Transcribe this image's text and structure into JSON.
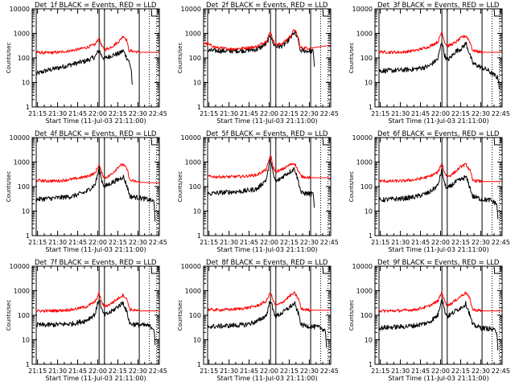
{
  "figure": {
    "background": "#ffffff",
    "axis_color": "#000000",
    "events_color": "#000000",
    "lld_color": "#ff0000"
  },
  "chart_data": [
    {
      "type": "line",
      "title": "Det_1f BLACK = Events, RED = LLD",
      "xlabel": "Start Time (11-Jul-03 21:11:00)",
      "ylabel": "Counts/sec",
      "x_tick_labels": [
        "21:15",
        "21:30",
        "21:45",
        "22:00",
        "22:15",
        "22:30",
        "22:45"
      ],
      "y_tick_labels": [
        "1",
        "10",
        "100",
        "1000",
        "10000"
      ],
      "xlim_min": [
        0,
        95
      ],
      "ylim": [
        1,
        10000
      ],
      "yscale": "log",
      "solid_markers_min": [
        3,
        50,
        54,
        80
      ],
      "dotted_markers_min": [
        87.5,
        93
      ],
      "series": [
        {
          "name": "Events",
          "color": "#000000",
          "x": [
            3,
            10,
            20,
            30,
            40,
            47,
            50,
            52,
            54,
            57,
            60,
            65,
            68,
            71,
            72,
            74,
            75
          ],
          "y": [
            22,
            30,
            40,
            55,
            75,
            110,
            210,
            120,
            95,
            110,
            130,
            150,
            200,
            95,
            80,
            35,
            5
          ]
        },
        {
          "name": "LLD",
          "color": "#ff0000",
          "x": [
            3,
            10,
            20,
            30,
            40,
            47,
            50,
            52,
            54,
            57,
            60,
            65,
            68,
            71,
            72,
            80,
            95
          ],
          "y": [
            170,
            160,
            170,
            200,
            260,
            350,
            650,
            300,
            220,
            240,
            300,
            480,
            800,
            500,
            200,
            170,
            170
          ]
        }
      ]
    },
    {
      "type": "line",
      "title": "Det_2f BLACK = Events, RED = LLD",
      "xlabel": "Start Time (11-Jul-03 21:11:00)",
      "ylabel": "Counts/sec",
      "x_tick_labels": [
        "21:15",
        "21:30",
        "21:45",
        "22:00",
        "22:15",
        "22:30",
        "22:45"
      ],
      "y_tick_labels": [
        "1",
        "10",
        "100",
        "1000",
        "10000"
      ],
      "xlim_min": [
        0,
        95
      ],
      "ylim": [
        1,
        10000
      ],
      "yscale": "log",
      "solid_markers_min": [
        3,
        50,
        54,
        80
      ],
      "dotted_markers_min": [
        87.5,
        93
      ],
      "series": [
        {
          "name": "Events",
          "color": "#000000",
          "x": [
            3,
            10,
            20,
            30,
            40,
            47,
            50,
            52,
            54,
            57,
            60,
            65,
            68,
            71,
            72,
            80,
            82,
            83
          ],
          "y": [
            200,
            195,
            190,
            200,
            220,
            380,
            900,
            380,
            300,
            290,
            330,
            650,
            1100,
            500,
            200,
            190,
            185,
            30
          ]
        },
        {
          "name": "LLD",
          "color": "#ff0000",
          "x": [
            0,
            10,
            20,
            30,
            40,
            47,
            50,
            52,
            54,
            57,
            60,
            65,
            68,
            71,
            72,
            80,
            95
          ],
          "y": [
            420,
            260,
            230,
            250,
            290,
            500,
            1200,
            500,
            360,
            360,
            420,
            800,
            1500,
            600,
            260,
            250,
            330
          ]
        }
      ]
    },
    {
      "type": "line",
      "title": "Det_3f BLACK = Events, RED = LLD",
      "xlabel": "Start Time (11-Jul-03 21:11:00)",
      "ylabel": "Counts/sec",
      "x_tick_labels": [
        "21:15",
        "21:30",
        "21:45",
        "22:00",
        "22:15",
        "22:30",
        "22:45"
      ],
      "y_tick_labels": [
        "1",
        "10",
        "100",
        "1000",
        "10000"
      ],
      "xlim_min": [
        0,
        95
      ],
      "ylim": [
        1,
        10000
      ],
      "yscale": "log",
      "solid_markers_min": [
        3,
        50,
        54,
        80
      ],
      "dotted_markers_min": [
        87.5,
        93
      ],
      "series": [
        {
          "name": "Events",
          "color": "#000000",
          "x": [
            3,
            10,
            20,
            30,
            40,
            47,
            50,
            52,
            54,
            57,
            60,
            65,
            68,
            71,
            73,
            80,
            84,
            89,
            92,
            93
          ],
          "y": [
            30,
            30,
            32,
            35,
            45,
            90,
            500,
            130,
            80,
            110,
            180,
            250,
            400,
            130,
            60,
            40,
            32,
            20,
            15,
            5
          ]
        },
        {
          "name": "LLD",
          "color": "#ff0000",
          "x": [
            3,
            10,
            20,
            30,
            40,
            47,
            50,
            52,
            54,
            57,
            60,
            65,
            68,
            71,
            73,
            80,
            95
          ],
          "y": [
            180,
            170,
            170,
            200,
            280,
            450,
            1200,
            450,
            300,
            350,
            420,
            700,
            800,
            450,
            200,
            170,
            170
          ]
        }
      ]
    },
    {
      "type": "line",
      "title": "Det_4f BLACK = Events, RED = LLD",
      "xlabel": "Start Time (11-Jul-03 21:11:00)",
      "ylabel": "Counts/sec",
      "x_tick_labels": [
        "21:15",
        "21:30",
        "21:45",
        "22:00",
        "22:15",
        "22:30",
        "22:45"
      ],
      "y_tick_labels": [
        "1",
        "10",
        "100",
        "1000",
        "10000"
      ],
      "xlim_min": [
        0,
        95
      ],
      "ylim": [
        1,
        10000
      ],
      "yscale": "log",
      "solid_markers_min": [
        3,
        50,
        54,
        80
      ],
      "dotted_markers_min": [
        87.5,
        93
      ],
      "series": [
        {
          "name": "Events",
          "color": "#000000",
          "x": [
            3,
            10,
            20,
            30,
            40,
            47,
            50,
            52,
            54,
            57,
            60,
            65,
            68,
            71,
            73,
            80,
            86,
            91,
            92
          ],
          "y": [
            30,
            32,
            35,
            40,
            60,
            120,
            550,
            180,
            100,
            120,
            150,
            200,
            260,
            100,
            40,
            35,
            30,
            25,
            3
          ]
        },
        {
          "name": "LLD",
          "color": "#ff0000",
          "x": [
            3,
            10,
            20,
            30,
            40,
            47,
            50,
            52,
            54,
            57,
            60,
            65,
            68,
            71,
            73,
            80,
            95
          ],
          "y": [
            180,
            170,
            170,
            200,
            250,
            350,
            800,
            350,
            230,
            260,
            350,
            700,
            800,
            500,
            180,
            150,
            140
          ]
        }
      ]
    },
    {
      "type": "line",
      "title": "Det_5f BLACK = Events, RED = LLD",
      "xlabel": "Start Time (11-Jul-03 21:11:00)",
      "ylabel": "Counts/sec",
      "x_tick_labels": [
        "21:15",
        "21:30",
        "21:45",
        "22:00",
        "22:15",
        "22:30",
        "22:45"
      ],
      "y_tick_labels": [
        "1",
        "10",
        "100",
        "1000",
        "10000"
      ],
      "xlim_min": [
        0,
        95
      ],
      "ylim": [
        1,
        10000
      ],
      "yscale": "log",
      "solid_markers_min": [
        3,
        50,
        54,
        80
      ],
      "dotted_markers_min": [
        87.5,
        93
      ],
      "series": [
        {
          "name": "Events",
          "color": "#000000",
          "x": [
            3,
            10,
            20,
            30,
            40,
            47,
            50,
            52,
            54,
            57,
            60,
            65,
            68,
            71,
            73,
            80,
            82,
            83
          ],
          "y": [
            50,
            55,
            60,
            65,
            80,
            200,
            1400,
            300,
            160,
            200,
            280,
            420,
            550,
            150,
            55,
            50,
            48,
            10
          ]
        },
        {
          "name": "LLD",
          "color": "#ff0000",
          "x": [
            3,
            10,
            20,
            30,
            40,
            47,
            50,
            52,
            54,
            57,
            60,
            65,
            68,
            71,
            73,
            80,
            95
          ],
          "y": [
            260,
            250,
            250,
            260,
            300,
            500,
            2000,
            600,
            400,
            450,
            550,
            800,
            900,
            400,
            260,
            230,
            230
          ]
        }
      ]
    },
    {
      "type": "line",
      "title": "Det_6f BLACK = Events, RED = LLD",
      "xlabel": "Start Time (11-Jul-03 21:11:00)",
      "ylabel": "Counts/sec",
      "x_tick_labels": [
        "21:15",
        "21:30",
        "21:45",
        "22:00",
        "22:15",
        "22:30",
        "22:45"
      ],
      "y_tick_labels": [
        "1",
        "10",
        "100",
        "1000",
        "10000"
      ],
      "xlim_min": [
        0,
        95
      ],
      "ylim": [
        1,
        10000
      ],
      "yscale": "log",
      "solid_markers_min": [
        3,
        50,
        54,
        80
      ],
      "dotted_markers_min": [
        87.5,
        93
      ],
      "series": [
        {
          "name": "Events",
          "color": "#000000",
          "x": [
            3,
            10,
            20,
            30,
            40,
            47,
            50,
            52,
            54,
            57,
            60,
            65,
            68,
            71,
            73,
            80,
            86,
            91,
            92
          ],
          "y": [
            28,
            30,
            32,
            38,
            55,
            110,
            500,
            130,
            80,
            110,
            150,
            200,
            250,
            90,
            40,
            30,
            28,
            20,
            4
          ]
        },
        {
          "name": "LLD",
          "color": "#ff0000",
          "x": [
            3,
            10,
            20,
            30,
            40,
            47,
            50,
            52,
            54,
            57,
            60,
            65,
            68,
            71,
            73,
            80,
            95
          ],
          "y": [
            170,
            165,
            170,
            190,
            250,
            380,
            900,
            380,
            250,
            300,
            400,
            700,
            800,
            450,
            180,
            160,
            160
          ]
        }
      ]
    },
    {
      "type": "line",
      "title": "Det_7f BLACK = Events, RED = LLD",
      "xlabel": "Start Time (11-Jul-03 21:11:00)",
      "ylabel": "Counts/sec",
      "x_tick_labels": [
        "21:15",
        "21:30",
        "21:45",
        "22:00",
        "22:15",
        "22:30",
        "22:45"
      ],
      "y_tick_labels": [
        "1",
        "10",
        "100",
        "1000",
        "10000"
      ],
      "xlim_min": [
        0,
        95
      ],
      "ylim": [
        1,
        10000
      ],
      "yscale": "log",
      "solid_markers_min": [
        3,
        50,
        54,
        80
      ],
      "dotted_markers_min": [
        87.5,
        93
      ],
      "series": [
        {
          "name": "Events",
          "color": "#000000",
          "x": [
            3,
            10,
            20,
            30,
            40,
            47,
            50,
            52,
            54,
            57,
            60,
            65,
            68,
            71,
            73,
            80,
            86,
            91,
            92
          ],
          "y": [
            40,
            40,
            42,
            45,
            60,
            110,
            500,
            160,
            100,
            120,
            150,
            250,
            330,
            120,
            45,
            40,
            38,
            30,
            5
          ]
        },
        {
          "name": "LLD",
          "color": "#ff0000",
          "x": [
            3,
            10,
            20,
            30,
            40,
            47,
            50,
            52,
            54,
            57,
            60,
            65,
            68,
            71,
            73,
            80,
            95
          ],
          "y": [
            150,
            150,
            155,
            170,
            220,
            350,
            800,
            330,
            230,
            260,
            330,
            520,
            680,
            420,
            170,
            150,
            150
          ]
        }
      ]
    },
    {
      "type": "line",
      "title": "Det_8f BLACK = Events, RED = LLD",
      "xlabel": "Start Time (11-Jul-03 21:11:00)",
      "ylabel": "Counts/sec",
      "x_tick_labels": [
        "21:15",
        "21:30",
        "21:45",
        "22:00",
        "22:15",
        "22:30",
        "22:45"
      ],
      "y_tick_labels": [
        "1",
        "10",
        "100",
        "1000",
        "10000"
      ],
      "xlim_min": [
        0,
        95
      ],
      "ylim": [
        1,
        10000
      ],
      "yscale": "log",
      "solid_markers_min": [
        3,
        50,
        54,
        80
      ],
      "dotted_markers_min": [
        87.5,
        93
      ],
      "series": [
        {
          "name": "Events",
          "color": "#000000",
          "x": [
            3,
            10,
            20,
            30,
            40,
            47,
            50,
            52,
            54,
            57,
            60,
            65,
            68,
            71,
            73,
            80,
            86,
            91,
            92
          ],
          "y": [
            35,
            35,
            38,
            40,
            55,
            100,
            450,
            150,
            90,
            110,
            140,
            230,
            300,
            110,
            40,
            35,
            32,
            25,
            4
          ]
        },
        {
          "name": "LLD",
          "color": "#ff0000",
          "x": [
            3,
            10,
            20,
            30,
            40,
            47,
            50,
            52,
            54,
            57,
            60,
            65,
            68,
            71,
            73,
            80,
            95
          ],
          "y": [
            170,
            165,
            170,
            190,
            240,
            380,
            900,
            380,
            250,
            290,
            380,
            650,
            800,
            450,
            180,
            160,
            160
          ]
        }
      ]
    },
    {
      "type": "line",
      "title": "Det_9f BLACK = Events, RED = LLD",
      "xlabel": "Start Time (11-Jul-03 21:11:00)",
      "ylabel": "Counts/sec",
      "x_tick_labels": [
        "21:15",
        "21:30",
        "21:45",
        "22:00",
        "22:15",
        "22:30",
        "22:45"
      ],
      "y_tick_labels": [
        "1",
        "10",
        "100",
        "1000",
        "10000"
      ],
      "xlim_min": [
        0,
        95
      ],
      "ylim": [
        1,
        10000
      ],
      "yscale": "log",
      "solid_markers_min": [
        3,
        50,
        54,
        80
      ],
      "dotted_markers_min": [
        87.5,
        93
      ],
      "series": [
        {
          "name": "Events",
          "color": "#000000",
          "x": [
            3,
            10,
            20,
            30,
            40,
            47,
            50,
            52,
            54,
            57,
            60,
            65,
            68,
            71,
            73,
            80,
            86,
            91,
            92
          ],
          "y": [
            30,
            32,
            34,
            38,
            50,
            100,
            550,
            160,
            90,
            110,
            150,
            220,
            300,
            100,
            40,
            30,
            28,
            22,
            3
          ]
        },
        {
          "name": "LLD",
          "color": "#ff0000",
          "x": [
            3,
            10,
            20,
            30,
            40,
            47,
            50,
            52,
            54,
            57,
            60,
            65,
            68,
            71,
            73,
            80,
            95
          ],
          "y": [
            150,
            150,
            155,
            170,
            230,
            380,
            900,
            380,
            250,
            300,
            400,
            650,
            850,
            450,
            170,
            150,
            150
          ]
        }
      ]
    }
  ]
}
